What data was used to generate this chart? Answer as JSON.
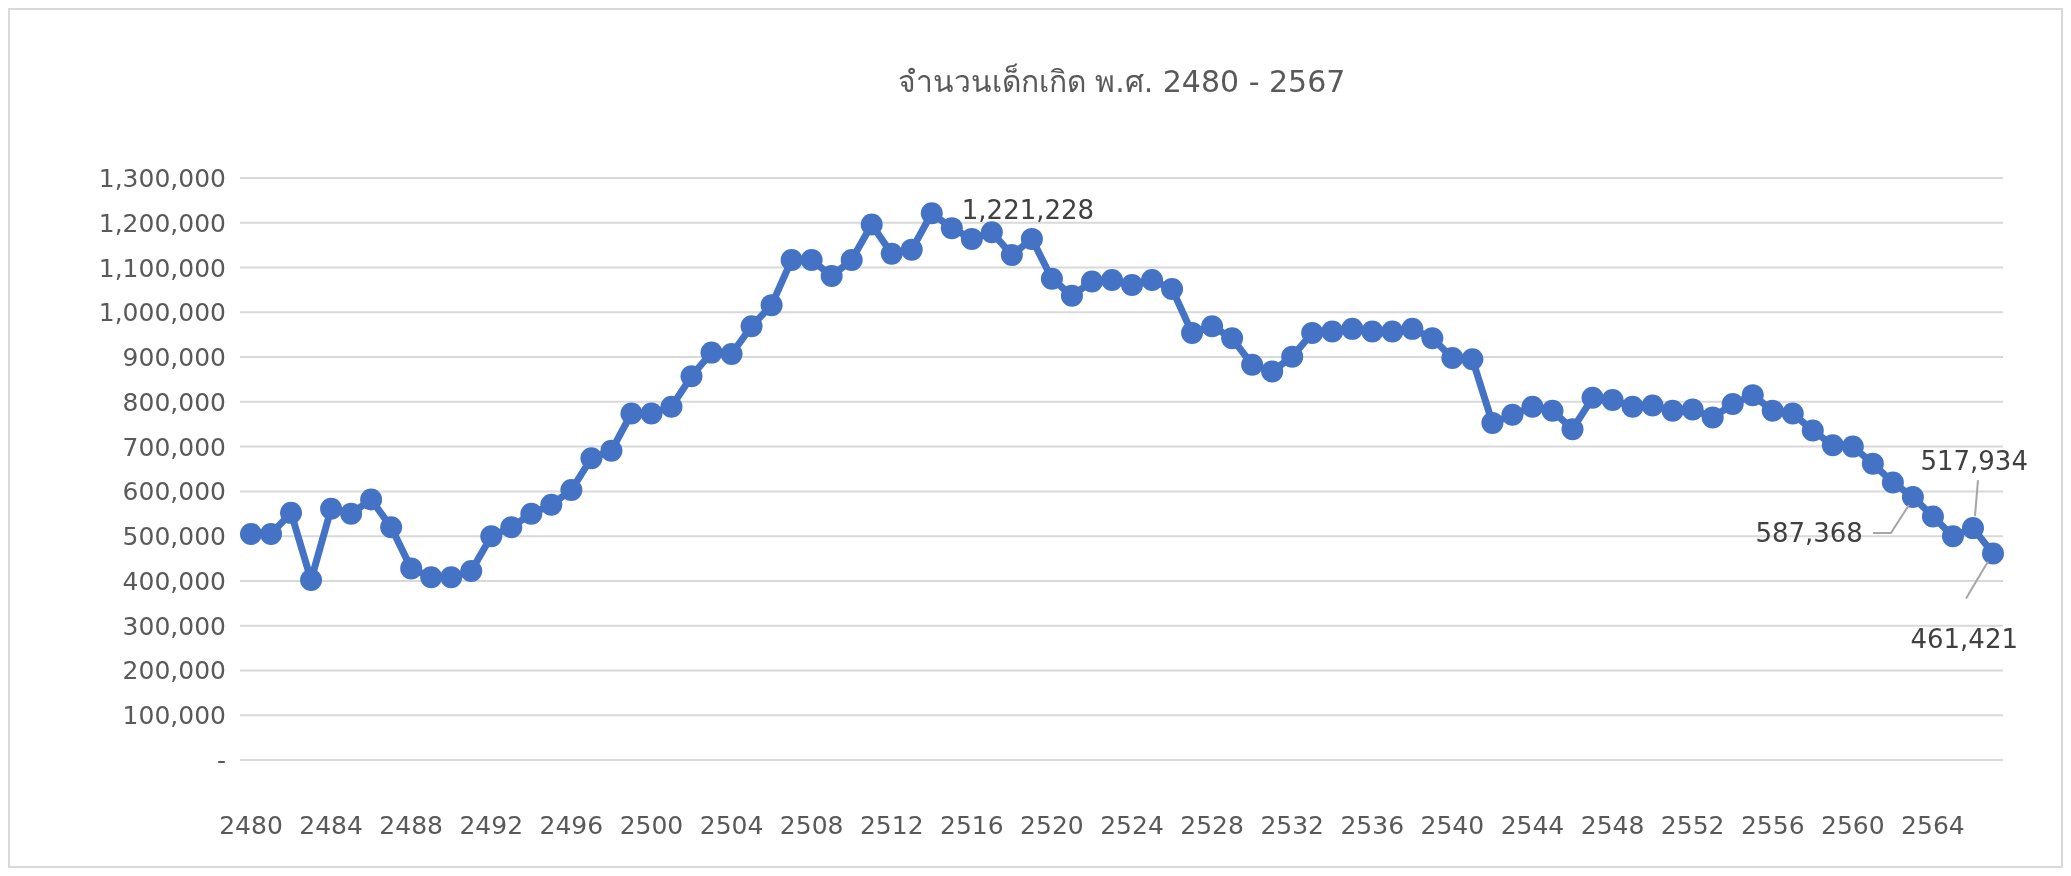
{
  "chart_data": {
    "type": "line",
    "title": "จำนวนเด็กเกิด พ.ศ. 2480 - 2567",
    "categories": [
      "2480",
      null,
      null,
      null,
      "2484",
      null,
      null,
      null,
      "2488",
      null,
      null,
      null,
      "2492",
      null,
      null,
      null,
      "2496",
      null,
      null,
      null,
      "2500",
      null,
      null,
      null,
      "2504",
      null,
      null,
      null,
      "2508",
      null,
      null,
      null,
      "2512",
      null,
      null,
      null,
      "2516",
      null,
      null,
      null,
      "2520",
      null,
      null,
      null,
      "2524",
      null,
      null,
      null,
      "2528",
      null,
      null,
      null,
      "2532",
      null,
      null,
      null,
      "2536",
      null,
      null,
      null,
      "2540",
      null,
      null,
      null,
      "2544",
      null,
      null,
      null,
      "2548",
      null,
      null,
      null,
      "2552",
      null,
      null,
      null,
      "2556",
      null,
      null,
      null,
      "2560",
      null,
      null,
      null,
      "2564",
      null,
      null,
      null
    ],
    "series": [
      {
        "color": "#4472c4",
        "values": [
          505000,
          505000,
          552000,
          402000,
          561000,
          550000,
          582000,
          520000,
          428000,
          408000,
          408000,
          422000,
          500000,
          520000,
          550000,
          570000,
          603000,
          674000,
          691000,
          774000,
          774000,
          789000,
          857000,
          910000,
          907000,
          969000,
          1016000,
          1117000,
          1117000,
          1081000,
          1117000,
          1196000,
          1131000,
          1140000,
          1221228,
          1188000,
          1164000,
          1179000,
          1128000,
          1164000,
          1075000,
          1037000,
          1069000,
          1072000,
          1061000,
          1072000,
          1052000,
          954000,
          969000,
          942000,
          883000,
          868000,
          901000,
          954000,
          957000,
          963000,
          957000,
          957000,
          963000,
          942000,
          898000,
          895000,
          753000,
          771000,
          789000,
          780000,
          739000,
          809000,
          804000,
          789000,
          792000,
          780000,
          783000,
          765000,
          795000,
          815000,
          780000,
          774000,
          736000,
          703000,
          700000,
          662000,
          620000,
          587368,
          544000,
          500000,
          517934,
          461421
        ],
        "value_labels": [
          null,
          null,
          null,
          null,
          null,
          null,
          null,
          null,
          null,
          null,
          null,
          null,
          null,
          null,
          null,
          null,
          null,
          null,
          null,
          null,
          null,
          null,
          null,
          null,
          null,
          null,
          null,
          null,
          null,
          null,
          null,
          null,
          null,
          null,
          "1,221,228",
          null,
          null,
          null,
          null,
          null,
          null,
          null,
          null,
          null,
          null,
          null,
          null,
          null,
          null,
          null,
          null,
          null,
          null,
          null,
          null,
          null,
          null,
          null,
          null,
          null,
          null,
          null,
          null,
          null,
          null,
          null,
          null,
          null,
          null,
          null,
          null,
          null,
          null,
          null,
          null,
          null,
          null,
          null,
          null,
          null,
          null,
          null,
          null,
          "587,368",
          null,
          null,
          "517,934",
          "461,421"
        ]
      }
    ],
    "ylim": [
      0,
      1300000
    ],
    "yticks": [
      {
        "value": 0,
        "label": "-"
      },
      {
        "value": 100000,
        "label": "100,000"
      },
      {
        "value": 200000,
        "label": "200,000"
      },
      {
        "value": 300000,
        "label": "300,000"
      },
      {
        "value": 400000,
        "label": "400,000"
      },
      {
        "value": 500000,
        "label": "500,000"
      },
      {
        "value": 600000,
        "label": "600,000"
      },
      {
        "value": 700000,
        "label": "700,000"
      },
      {
        "value": 800000,
        "label": "800,000"
      },
      {
        "value": 900000,
        "label": "900,000"
      },
      {
        "value": 1000000,
        "label": "1,000,000"
      },
      {
        "value": 1100000,
        "label": "1,100,000"
      },
      {
        "value": 1200000,
        "label": "1,200,000"
      },
      {
        "value": 1300000,
        "label": "1,300,000"
      }
    ],
    "grid": "y",
    "marker": "circle"
  }
}
